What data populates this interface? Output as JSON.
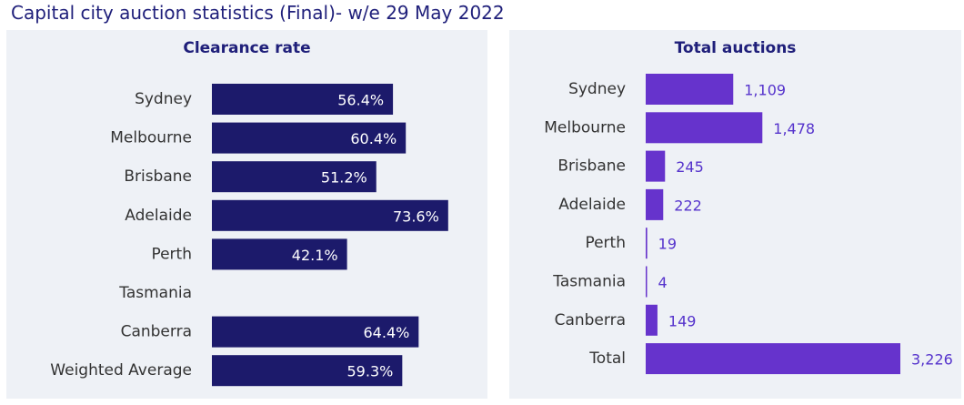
{
  "page": {
    "title": "Capital city auction statistics (Final)- w/e 29 May 2022"
  },
  "colors": {
    "clearance_bar": "#1c1a6b",
    "auctions_bar": "#6633cc",
    "auctions_label": "#5533cc",
    "panel_bg": "#eef1f6",
    "title_text": "#1f1f7a"
  },
  "chart_data": [
    {
      "type": "bar",
      "orientation": "horizontal",
      "title": "Clearance rate",
      "categories": [
        "Sydney",
        "Melbourne",
        "Brisbane",
        "Adelaide",
        "Perth",
        "Tasmania",
        "Canberra",
        "Weighted Average"
      ],
      "values": [
        56.4,
        60.4,
        51.2,
        73.6,
        42.1,
        null,
        64.4,
        59.3
      ],
      "value_labels": [
        "56.4%",
        "60.4%",
        "51.2%",
        "73.6%",
        "42.1%",
        "",
        "64.4%",
        "59.3%"
      ],
      "xlim": [
        0,
        100
      ],
      "grid": false,
      "legend": "none"
    },
    {
      "type": "bar",
      "orientation": "horizontal",
      "title": "Total auctions",
      "categories": [
        "Sydney",
        "Melbourne",
        "Brisbane",
        "Adelaide",
        "Perth",
        "Tasmania",
        "Canberra",
        "Total"
      ],
      "values": [
        1109,
        1478,
        245,
        222,
        19,
        4,
        149,
        3226
      ],
      "value_labels": [
        "1,109",
        "1,478",
        "245",
        "222",
        "19",
        "4",
        "149",
        "3,226"
      ],
      "xlim": [
        0,
        3226
      ],
      "grid": false,
      "legend": "none"
    }
  ]
}
